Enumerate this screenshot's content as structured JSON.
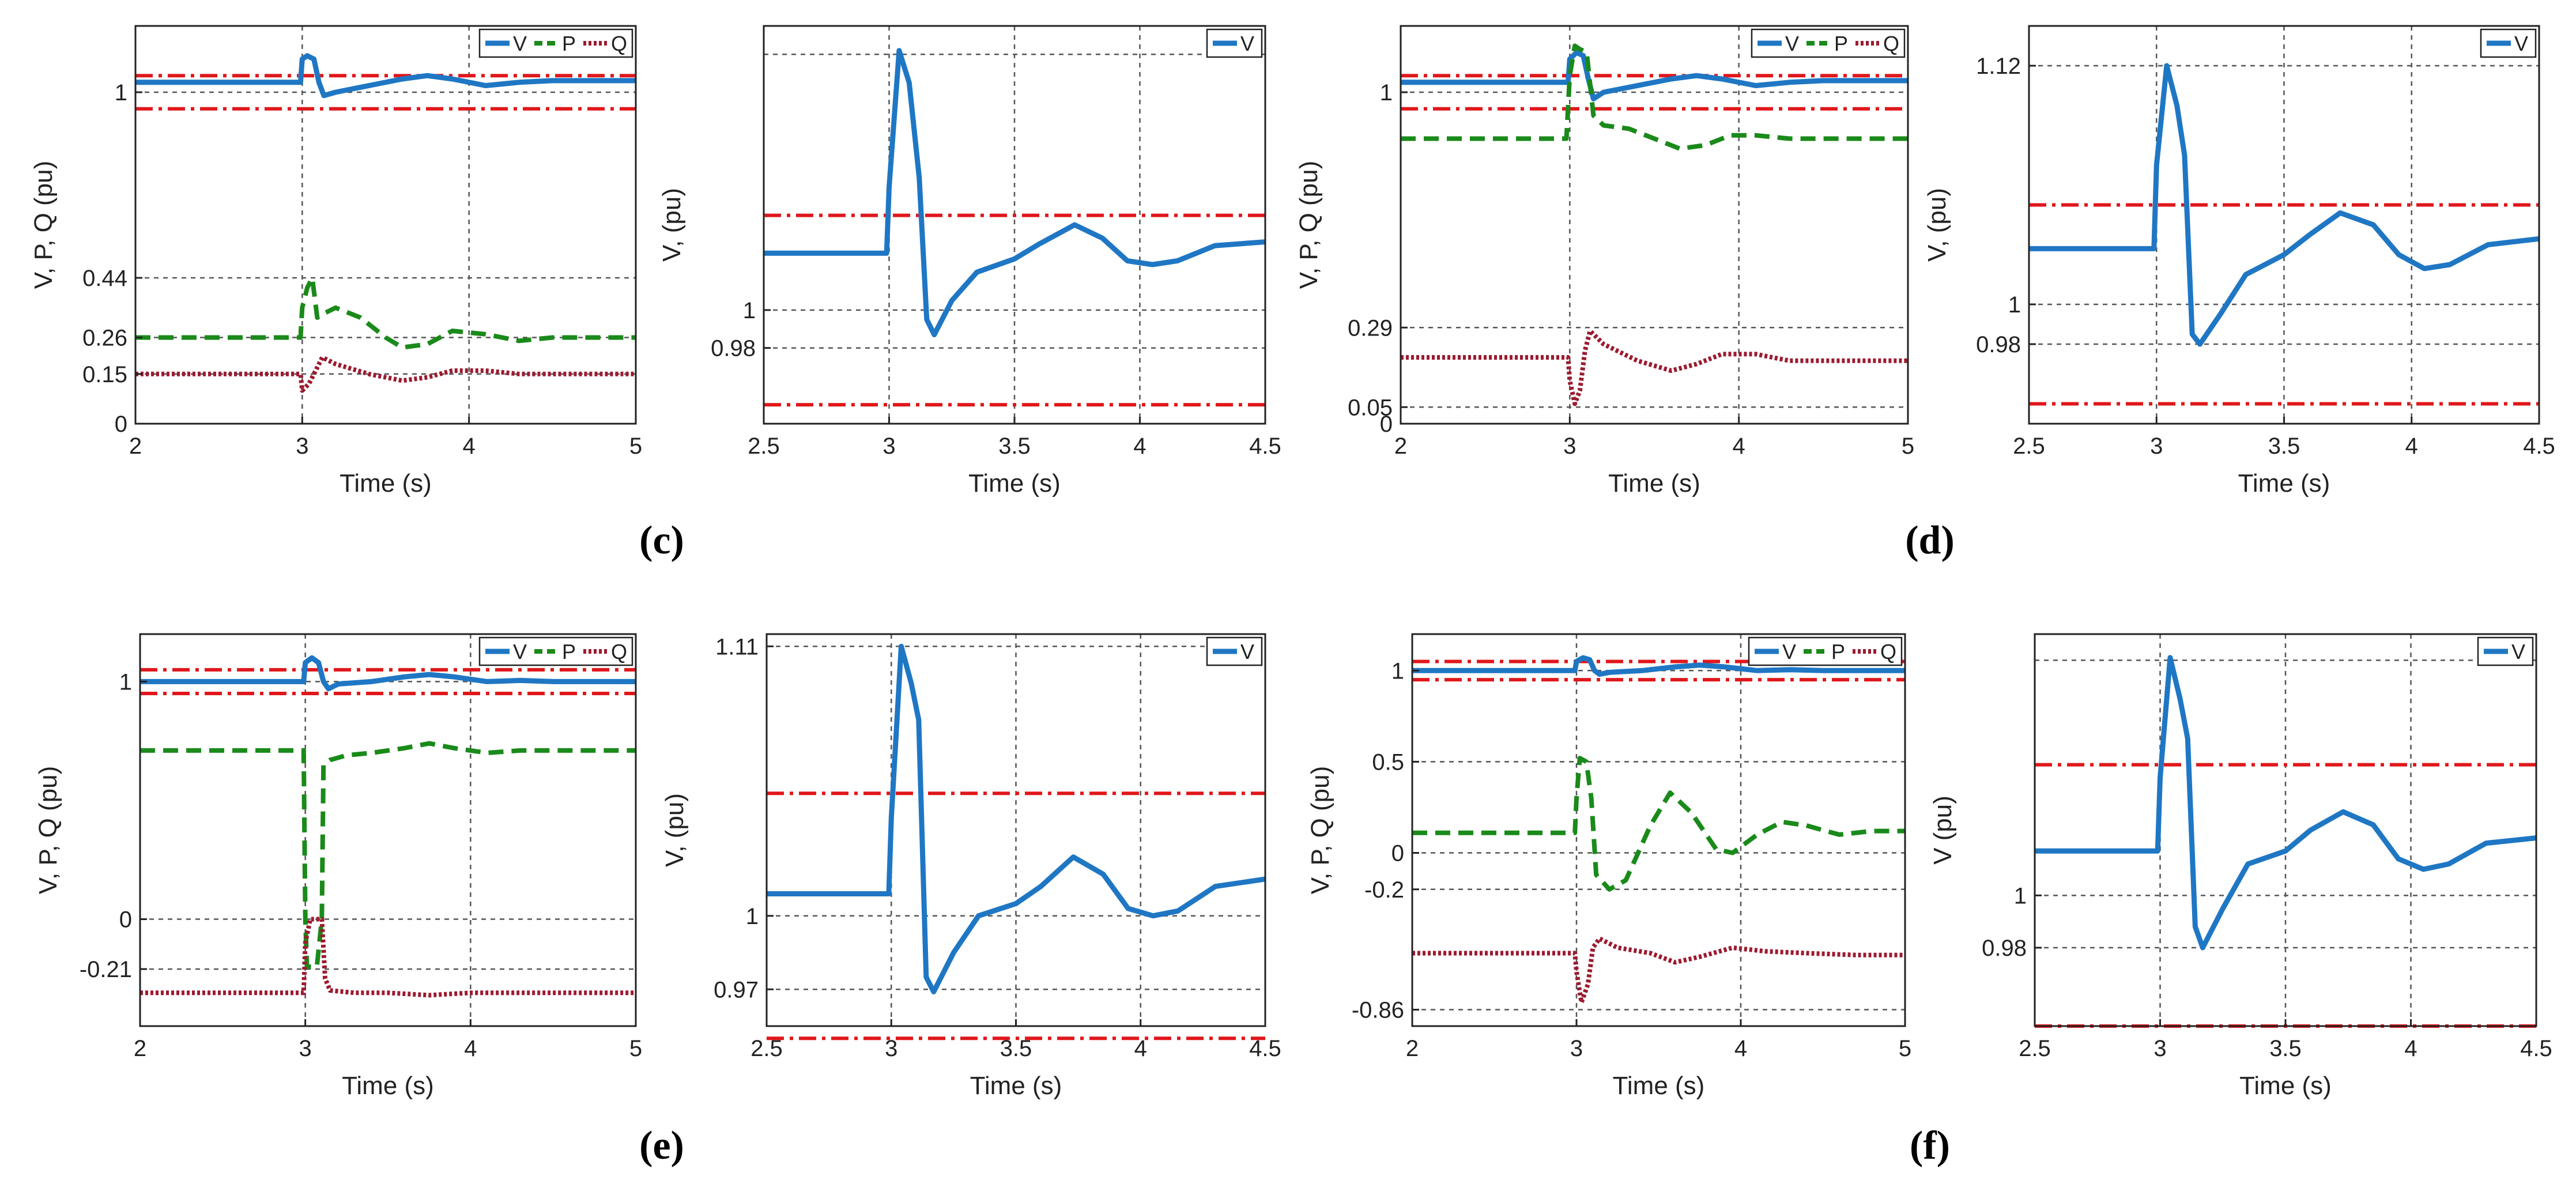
{
  "figure": {
    "panel_labels": [
      "(c)",
      "(d)",
      "(e)",
      "(f)"
    ]
  },
  "colors": {
    "V": "#1f77c4",
    "P": "#1a8a1a",
    "Q": "#9b1b30",
    "limit": "#e0171b",
    "grid": "#555555"
  },
  "chart_data": [
    {
      "id": "c-left",
      "type": "line",
      "xlabel": "Time (s)",
      "ylabel": "V, P, Q (pu)",
      "xlim": [
        2,
        5
      ],
      "ylim": [
        0,
        1.2
      ],
      "xticks": [
        2,
        3,
        4,
        5
      ],
      "yticks": [
        0,
        0.15,
        0.26,
        0.44,
        1
      ],
      "ytick_labels": [
        "0",
        "0.15",
        "0.26",
        "0.44",
        "1"
      ],
      "grid_x": [
        3,
        4
      ],
      "grid_y": [
        0.15,
        0.26,
        0.44,
        1
      ],
      "legend": [
        "V",
        "P",
        "Q"
      ],
      "limits": [
        0.95,
        1.05
      ],
      "series": [
        {
          "name": "V",
          "style": "solid",
          "x": [
            2,
            2.99,
            3.0,
            3.03,
            3.07,
            3.1,
            3.13,
            3.2,
            3.4,
            3.6,
            3.75,
            3.9,
            4.1,
            4.3,
            4.5,
            5
          ],
          "y": [
            1.03,
            1.03,
            1.1,
            1.11,
            1.1,
            1.03,
            0.99,
            1.0,
            1.02,
            1.04,
            1.05,
            1.04,
            1.02,
            1.03,
            1.035,
            1.035
          ]
        },
        {
          "name": "P",
          "style": "dash",
          "x": [
            2,
            2.99,
            3.0,
            3.03,
            3.06,
            3.09,
            3.12,
            3.2,
            3.35,
            3.5,
            3.6,
            3.75,
            3.9,
            4.1,
            4.3,
            4.5,
            5
          ],
          "y": [
            0.26,
            0.26,
            0.35,
            0.41,
            0.44,
            0.32,
            0.33,
            0.35,
            0.32,
            0.26,
            0.23,
            0.24,
            0.28,
            0.27,
            0.25,
            0.26,
            0.26
          ]
        },
        {
          "name": "Q",
          "style": "dot",
          "x": [
            2,
            2.99,
            3.0,
            3.04,
            3.08,
            3.12,
            3.2,
            3.4,
            3.6,
            3.75,
            3.9,
            4.1,
            4.3,
            4.5,
            5
          ],
          "y": [
            0.15,
            0.15,
            0.1,
            0.12,
            0.16,
            0.2,
            0.18,
            0.15,
            0.13,
            0.14,
            0.16,
            0.16,
            0.15,
            0.15,
            0.15
          ]
        }
      ]
    },
    {
      "id": "c-right",
      "type": "line",
      "xlabel": "Time (s)",
      "ylabel": "V, (pu)",
      "xlim": [
        2.5,
        4.5
      ],
      "ylim": [
        0.94,
        1.15
      ],
      "xticks": [
        2.5,
        3,
        3.5,
        4,
        4.5
      ],
      "yticks": [
        0.98,
        1
      ],
      "ytick_labels": [
        "0.98",
        "1"
      ],
      "grid_x": [
        3,
        3.5,
        4
      ],
      "grid_y": [
        0.98,
        1,
        1.135
      ],
      "legend": [
        "V"
      ],
      "limits": [
        0.95,
        1.05
      ],
      "series": [
        {
          "name": "V",
          "style": "solid",
          "x": [
            2.5,
            2.99,
            3.0,
            3.04,
            3.08,
            3.12,
            3.15,
            3.18,
            3.25,
            3.35,
            3.5,
            3.6,
            3.74,
            3.85,
            3.95,
            4.05,
            4.15,
            4.3,
            4.5
          ],
          "y": [
            1.03,
            1.03,
            1.065,
            1.137,
            1.12,
            1.07,
            0.995,
            0.987,
            1.005,
            1.02,
            1.027,
            1.035,
            1.045,
            1.038,
            1.026,
            1.024,
            1.026,
            1.034,
            1.036
          ]
        }
      ]
    },
    {
      "id": "d-left",
      "type": "line",
      "xlabel": "Time (s)",
      "ylabel": "V, P, Q (pu)",
      "xlim": [
        2,
        5
      ],
      "ylim": [
        0,
        1.2
      ],
      "xticks": [
        2,
        3,
        4,
        5
      ],
      "yticks": [
        0,
        0.05,
        0.29,
        1
      ],
      "ytick_labels": [
        "0",
        "0.05",
        "0.29",
        "1"
      ],
      "grid_x": [
        3,
        4
      ],
      "grid_y": [
        0.05,
        0.29,
        1
      ],
      "legend": [
        "V",
        "P",
        "Q"
      ],
      "limits": [
        0.95,
        1.05
      ],
      "series": [
        {
          "name": "V",
          "style": "solid",
          "x": [
            2,
            2.99,
            3.0,
            3.04,
            3.08,
            3.11,
            3.14,
            3.2,
            3.4,
            3.6,
            3.75,
            3.9,
            4.1,
            4.3,
            4.5,
            5
          ],
          "y": [
            1.03,
            1.03,
            1.1,
            1.12,
            1.11,
            1.04,
            0.98,
            1.0,
            1.02,
            1.04,
            1.05,
            1.04,
            1.02,
            1.03,
            1.035,
            1.035
          ]
        },
        {
          "name": "P",
          "style": "dash",
          "x": [
            2,
            2.98,
            3.0,
            3.03,
            3.06,
            3.1,
            3.14,
            3.2,
            3.35,
            3.5,
            3.65,
            3.8,
            3.95,
            4.1,
            4.3,
            4.5,
            5
          ],
          "y": [
            0.86,
            0.86,
            1.05,
            1.14,
            1.13,
            1.12,
            0.93,
            0.9,
            0.89,
            0.86,
            0.83,
            0.84,
            0.87,
            0.87,
            0.86,
            0.86,
            0.86
          ]
        },
        {
          "name": "Q",
          "style": "dot",
          "x": [
            2,
            2.99,
            3.0,
            3.03,
            3.06,
            3.09,
            3.12,
            3.2,
            3.4,
            3.6,
            3.75,
            3.9,
            4.1,
            4.3,
            4.5,
            5
          ],
          "y": [
            0.2,
            0.2,
            0.13,
            0.06,
            0.1,
            0.22,
            0.28,
            0.24,
            0.19,
            0.16,
            0.18,
            0.21,
            0.21,
            0.19,
            0.19,
            0.19
          ]
        }
      ]
    },
    {
      "id": "d-right",
      "type": "line",
      "xlabel": "Time (s)",
      "ylabel": "V, (pu)",
      "xlim": [
        2.5,
        4.5
      ],
      "ylim": [
        0.94,
        1.14
      ],
      "xticks": [
        2.5,
        3,
        3.5,
        4,
        4.5
      ],
      "yticks": [
        0.98,
        1,
        1.12
      ],
      "ytick_labels": [
        "0.98",
        "1",
        "1.12"
      ],
      "grid_x": [
        3,
        3.5,
        4
      ],
      "grid_y": [
        0.98,
        1,
        1.12
      ],
      "legend": [
        "V"
      ],
      "limits": [
        0.95,
        1.05
      ],
      "series": [
        {
          "name": "V",
          "style": "solid",
          "x": [
            2.5,
            2.99,
            3.0,
            3.04,
            3.08,
            3.11,
            3.14,
            3.17,
            3.25,
            3.35,
            3.5,
            3.6,
            3.72,
            3.85,
            3.95,
            4.05,
            4.15,
            4.3,
            4.5
          ],
          "y": [
            1.028,
            1.028,
            1.07,
            1.12,
            1.1,
            1.075,
            0.985,
            0.98,
            0.995,
            1.015,
            1.025,
            1.035,
            1.046,
            1.04,
            1.025,
            1.018,
            1.02,
            1.03,
            1.033
          ]
        }
      ]
    },
    {
      "id": "e-left",
      "type": "line",
      "xlabel": "Time (s)",
      "ylabel": "V, P, Q (pu)",
      "xlim": [
        2,
        5
      ],
      "ylim": [
        -0.45,
        1.2
      ],
      "xticks": [
        2,
        3,
        4,
        5
      ],
      "yticks": [
        -0.21,
        0,
        1
      ],
      "ytick_labels": [
        "-0.21",
        "0",
        "1"
      ],
      "grid_x": [
        3,
        4
      ],
      "grid_y": [
        -0.21,
        0,
        1
      ],
      "legend": [
        "V",
        "P",
        "Q"
      ],
      "limits": [
        0.95,
        1.05
      ],
      "series": [
        {
          "name": "V",
          "style": "solid",
          "x": [
            2,
            2.99,
            3.0,
            3.04,
            3.08,
            3.11,
            3.14,
            3.2,
            3.4,
            3.6,
            3.75,
            3.9,
            4.1,
            4.3,
            4.5,
            5
          ],
          "y": [
            1.0,
            1.0,
            1.08,
            1.1,
            1.08,
            1.0,
            0.97,
            0.99,
            1.0,
            1.02,
            1.03,
            1.02,
            1.0,
            1.005,
            1.0,
            1.0
          ]
        },
        {
          "name": "P",
          "style": "dash",
          "x": [
            2,
            2.99,
            3.0,
            3.01,
            3.07,
            3.1,
            3.11,
            3.15,
            3.25,
            3.4,
            3.6,
            3.75,
            3.9,
            4.1,
            4.3,
            4.5,
            5
          ],
          "y": [
            0.71,
            0.71,
            0.0,
            -0.2,
            -0.2,
            0.0,
            0.65,
            0.67,
            0.69,
            0.7,
            0.72,
            0.74,
            0.72,
            0.7,
            0.71,
            0.71,
            0.71
          ]
        },
        {
          "name": "Q",
          "style": "dot",
          "x": [
            2,
            2.99,
            3.0,
            3.03,
            3.1,
            3.12,
            3.15,
            3.3,
            3.5,
            3.75,
            4.0,
            4.3,
            4.5,
            5
          ],
          "y": [
            -0.31,
            -0.31,
            -0.1,
            0.0,
            0.0,
            -0.25,
            -0.3,
            -0.31,
            -0.31,
            -0.32,
            -0.31,
            -0.31,
            -0.31,
            -0.31
          ]
        }
      ]
    },
    {
      "id": "e-right",
      "type": "line",
      "xlabel": "Time (s)",
      "ylabel": "V, (pu)",
      "xlim": [
        2.5,
        4.5
      ],
      "ylim": [
        0.955,
        1.115
      ],
      "xticks": [
        2.5,
        3,
        3.5,
        4,
        4.5
      ],
      "yticks": [
        0.97,
        1,
        1.11
      ],
      "ytick_labels": [
        "0.97",
        "1",
        "1.11"
      ],
      "grid_x": [
        3,
        3.5,
        4
      ],
      "grid_y": [
        0.97,
        1,
        1.11
      ],
      "legend": [
        "V"
      ],
      "limits": [
        0.95,
        1.05
      ],
      "series": [
        {
          "name": "V",
          "style": "solid",
          "x": [
            2.5,
            2.99,
            3.0,
            3.04,
            3.08,
            3.11,
            3.14,
            3.17,
            3.25,
            3.35,
            3.5,
            3.6,
            3.73,
            3.85,
            3.95,
            4.05,
            4.15,
            4.3,
            4.5
          ],
          "y": [
            1.009,
            1.009,
            1.04,
            1.11,
            1.095,
            1.08,
            0.975,
            0.969,
            0.985,
            1.0,
            1.005,
            1.012,
            1.024,
            1.017,
            1.003,
            1.0,
            1.002,
            1.012,
            1.015
          ]
        }
      ]
    },
    {
      "id": "f-left",
      "type": "line",
      "xlabel": "Time (s)",
      "ylabel": "V, P, Q (pu)",
      "xlim": [
        2,
        5
      ],
      "ylim": [
        -0.95,
        1.2
      ],
      "xticks": [
        2,
        3,
        4,
        5
      ],
      "yticks": [
        -0.86,
        -0.2,
        0,
        0.5,
        1
      ],
      "ytick_labels": [
        "-0.86",
        "-0.2",
        "0",
        "0.5",
        "1"
      ],
      "grid_x": [
        3,
        4
      ],
      "grid_y": [
        -0.86,
        -0.2,
        0,
        0.5,
        1
      ],
      "legend": [
        "V",
        "P",
        "Q"
      ],
      "limits": [
        0.95,
        1.05
      ],
      "series": [
        {
          "name": "V",
          "style": "solid",
          "x": [
            2,
            2.99,
            3.0,
            3.04,
            3.08,
            3.11,
            3.14,
            3.2,
            3.4,
            3.6,
            3.75,
            3.9,
            4.1,
            4.3,
            4.5,
            5
          ],
          "y": [
            1.0,
            1.0,
            1.05,
            1.07,
            1.06,
            1.0,
            0.98,
            0.99,
            1.0,
            1.02,
            1.03,
            1.02,
            1.0,
            1.005,
            1.0,
            1.0
          ]
        },
        {
          "name": "P",
          "style": "dash",
          "x": [
            2,
            2.99,
            3.0,
            3.02,
            3.06,
            3.09,
            3.12,
            3.2,
            3.3,
            3.45,
            3.57,
            3.7,
            3.85,
            3.95,
            4.1,
            4.25,
            4.4,
            4.6,
            4.8,
            5
          ],
          "y": [
            0.11,
            0.11,
            0.3,
            0.52,
            0.5,
            0.3,
            -0.12,
            -0.2,
            -0.15,
            0.15,
            0.33,
            0.22,
            0.02,
            0.0,
            0.1,
            0.17,
            0.15,
            0.1,
            0.12,
            0.12
          ]
        },
        {
          "name": "Q",
          "style": "dot",
          "x": [
            2,
            2.99,
            3.0,
            3.03,
            3.07,
            3.1,
            3.14,
            3.25,
            3.45,
            3.6,
            3.75,
            3.95,
            4.15,
            4.4,
            4.7,
            5
          ],
          "y": [
            -0.55,
            -0.55,
            -0.65,
            -0.82,
            -0.72,
            -0.52,
            -0.47,
            -0.52,
            -0.55,
            -0.6,
            -0.57,
            -0.52,
            -0.54,
            -0.55,
            -0.56,
            -0.56
          ]
        }
      ]
    },
    {
      "id": "f-right",
      "type": "line",
      "xlabel": "Time (s)",
      "ylabel": "V (pu)",
      "xlim": [
        2.5,
        4.5
      ],
      "ylim": [
        0.95,
        1.1
      ],
      "xticks": [
        2.5,
        3,
        3.5,
        4,
        4.5
      ],
      "yticks": [
        0.98,
        1
      ],
      "ytick_labels": [
        "0.98",
        "1"
      ],
      "grid_x": [
        3,
        3.5,
        4
      ],
      "grid_y": [
        0.98,
        1,
        1.09
      ],
      "legend": [
        "V"
      ],
      "limits": [
        0.95,
        1.05
      ],
      "series": [
        {
          "name": "V",
          "style": "solid",
          "x": [
            2.5,
            2.99,
            3.0,
            3.04,
            3.08,
            3.11,
            3.14,
            3.17,
            3.25,
            3.35,
            3.5,
            3.6,
            3.73,
            3.85,
            3.95,
            4.05,
            4.15,
            4.3,
            4.5
          ],
          "y": [
            1.017,
            1.017,
            1.045,
            1.091,
            1.075,
            1.06,
            0.988,
            0.98,
            0.995,
            1.012,
            1.017,
            1.025,
            1.032,
            1.027,
            1.014,
            1.01,
            1.012,
            1.02,
            1.022
          ]
        }
      ]
    }
  ]
}
